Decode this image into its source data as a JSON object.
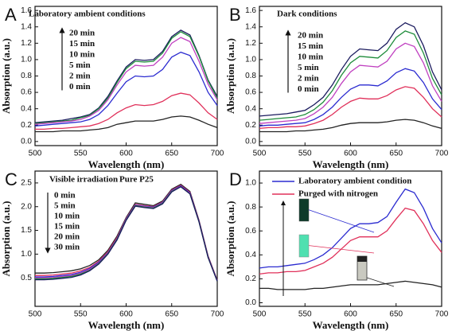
{
  "chart_data": [
    {
      "type": "line",
      "panel_label": "A",
      "annotations": [
        "Laboratory ambient conditions"
      ],
      "x_label": "Wavelength (nm)",
      "y_label": "Absorption (a.u.)",
      "xlim": [
        500,
        700
      ],
      "xticks": [
        500,
        550,
        600,
        650,
        700
      ],
      "ylim": [
        -0.05,
        1.65
      ],
      "yticks": [
        {
          "value": 0,
          "label": "0.0"
        },
        0.2,
        0.4,
        0.6,
        0.8,
        {
          "value": 1,
          "label": "1.0"
        },
        1.2,
        1.4,
        1.6
      ],
      "x": [
        500,
        510,
        520,
        530,
        540,
        550,
        560,
        570,
        580,
        590,
        600,
        610,
        620,
        630,
        640,
        650,
        660,
        670,
        680,
        690,
        700
      ],
      "series": [
        {
          "name": "20 min",
          "color": "#1a1a5e",
          "values": [
            0.23,
            0.24,
            0.25,
            0.26,
            0.28,
            0.3,
            0.33,
            0.41,
            0.55,
            0.74,
            0.91,
            1.0,
            0.99,
            1.0,
            1.1,
            1.28,
            1.36,
            1.3,
            1.05,
            0.75,
            0.55
          ]
        },
        {
          "name": "15 min",
          "color": "#1e8c3a",
          "values": [
            0.22,
            0.23,
            0.24,
            0.25,
            0.26,
            0.29,
            0.32,
            0.4,
            0.53,
            0.72,
            0.89,
            0.98,
            0.97,
            0.98,
            1.08,
            1.26,
            1.34,
            1.28,
            1.04,
            0.74,
            0.53
          ]
        },
        {
          "name": "10 min",
          "color": "#c040c0",
          "values": [
            0.21,
            0.22,
            0.23,
            0.24,
            0.25,
            0.27,
            0.31,
            0.38,
            0.51,
            0.69,
            0.85,
            0.93,
            0.92,
            0.93,
            1.03,
            1.2,
            1.27,
            1.22,
            0.98,
            0.7,
            0.51
          ]
        },
        {
          "name": "5 min",
          "color": "#2b2bd0",
          "values": [
            0.19,
            0.2,
            0.21,
            0.22,
            0.23,
            0.24,
            0.27,
            0.33,
            0.44,
            0.59,
            0.73,
            0.8,
            0.79,
            0.8,
            0.88,
            1.03,
            1.09,
            1.05,
            0.85,
            0.6,
            0.44
          ]
        },
        {
          "name": "2 min",
          "color": "#e0305a",
          "values": [
            0.15,
            0.15,
            0.16,
            0.16,
            0.17,
            0.18,
            0.19,
            0.22,
            0.27,
            0.35,
            0.41,
            0.45,
            0.44,
            0.45,
            0.49,
            0.56,
            0.59,
            0.57,
            0.47,
            0.35,
            0.27
          ]
        },
        {
          "name": "0 min",
          "color": "#222222",
          "values": [
            0.12,
            0.12,
            0.12,
            0.13,
            0.13,
            0.13,
            0.14,
            0.15,
            0.17,
            0.21,
            0.23,
            0.25,
            0.25,
            0.25,
            0.27,
            0.3,
            0.31,
            0.3,
            0.26,
            0.21,
            0.17
          ]
        }
      ]
    },
    {
      "type": "line",
      "panel_label": "B",
      "annotations": [
        "Dark conditions"
      ],
      "x_label": "Wavelength (nm)",
      "y_label": "Absorption (a.u.)",
      "xlim": [
        500,
        700
      ],
      "xticks": [
        500,
        550,
        600,
        650,
        700
      ],
      "ylim": [
        -0.05,
        1.65
      ],
      "yticks": [
        {
          "value": 0,
          "label": "0.0"
        },
        0.2,
        0.4,
        0.6,
        0.8,
        {
          "value": 1,
          "label": "1.0"
        },
        1.2,
        1.4,
        1.6
      ],
      "x": [
        500,
        510,
        520,
        530,
        540,
        550,
        560,
        570,
        580,
        590,
        600,
        610,
        620,
        630,
        640,
        650,
        660,
        670,
        680,
        690,
        700
      ],
      "series": [
        {
          "name": "20 min",
          "color": "#1a1a5e",
          "values": [
            0.31,
            0.32,
            0.33,
            0.34,
            0.36,
            0.38,
            0.45,
            0.54,
            0.69,
            0.88,
            1.04,
            1.13,
            1.12,
            1.11,
            1.2,
            1.37,
            1.45,
            1.4,
            1.17,
            0.85,
            0.63
          ]
        },
        {
          "name": "15 min",
          "color": "#1e8c3a",
          "values": [
            0.26,
            0.27,
            0.28,
            0.29,
            0.3,
            0.33,
            0.39,
            0.48,
            0.62,
            0.81,
            0.96,
            1.04,
            1.03,
            1.02,
            1.11,
            1.27,
            1.35,
            1.31,
            1.08,
            0.77,
            0.57
          ]
        },
        {
          "name": "10 min",
          "color": "#c040c0",
          "values": [
            0.22,
            0.23,
            0.24,
            0.25,
            0.26,
            0.28,
            0.34,
            0.42,
            0.54,
            0.71,
            0.85,
            0.93,
            0.92,
            0.91,
            0.98,
            1.13,
            1.2,
            1.16,
            0.96,
            0.68,
            0.49
          ]
        },
        {
          "name": "5 min",
          "color": "#2b2bd0",
          "values": [
            0.19,
            0.2,
            0.2,
            0.21,
            0.22,
            0.23,
            0.27,
            0.33,
            0.42,
            0.54,
            0.64,
            0.69,
            0.69,
            0.68,
            0.74,
            0.84,
            0.89,
            0.86,
            0.72,
            0.52,
            0.39
          ]
        },
        {
          "name": "2 min",
          "color": "#e0305a",
          "values": [
            0.16,
            0.17,
            0.17,
            0.18,
            0.18,
            0.19,
            0.22,
            0.26,
            0.33,
            0.42,
            0.49,
            0.53,
            0.52,
            0.52,
            0.56,
            0.63,
            0.67,
            0.65,
            0.54,
            0.4,
            0.3
          ]
        },
        {
          "name": "0 min",
          "color": "#222222",
          "values": [
            0.12,
            0.12,
            0.12,
            0.12,
            0.13,
            0.13,
            0.14,
            0.15,
            0.17,
            0.2,
            0.22,
            0.23,
            0.23,
            0.23,
            0.24,
            0.26,
            0.27,
            0.26,
            0.23,
            0.19,
            0.16
          ]
        }
      ]
    },
    {
      "type": "line",
      "panel_label": "C",
      "annotations": [
        "Visible irradiation",
        "Pure P25"
      ],
      "x_label": "Wavelength (nm)",
      "y_label": "Absorption (a.u.)",
      "xlim": [
        500,
        700
      ],
      "xticks": [
        500,
        550,
        600,
        650,
        700
      ],
      "ylim": [
        -0.1,
        2.75
      ],
      "yticks": [
        0.5,
        {
          "value": 1,
          "label": "1.0"
        },
        1.5,
        {
          "value": 2,
          "label": "2.0"
        },
        2.5
      ],
      "x": [
        500,
        510,
        520,
        530,
        540,
        550,
        560,
        570,
        580,
        590,
        600,
        610,
        620,
        630,
        640,
        650,
        660,
        670,
        680,
        690,
        700
      ],
      "series": [
        {
          "name": "0 min",
          "color": "#222222",
          "values": [
            0.6,
            0.6,
            0.61,
            0.63,
            0.65,
            0.69,
            0.76,
            0.88,
            1.08,
            1.38,
            1.77,
            2.08,
            2.05,
            2.02,
            2.12,
            2.37,
            2.47,
            2.32,
            1.71,
            0.96,
            0.45
          ]
        },
        {
          "name": "5 min",
          "color": "#e0305a",
          "values": [
            0.55,
            0.55,
            0.56,
            0.58,
            0.6,
            0.65,
            0.72,
            0.85,
            1.05,
            1.35,
            1.75,
            2.05,
            2.02,
            2.0,
            2.1,
            2.35,
            2.45,
            2.3,
            1.7,
            0.95,
            0.45
          ]
        },
        {
          "name": "10 min",
          "color": "#2b2bd0",
          "values": [
            0.52,
            0.52,
            0.53,
            0.55,
            0.57,
            0.62,
            0.7,
            0.83,
            1.03,
            1.33,
            1.74,
            2.04,
            2.01,
            1.99,
            2.09,
            2.34,
            2.44,
            2.29,
            1.69,
            0.94,
            0.44
          ]
        },
        {
          "name": "15 min",
          "color": "#c040c0",
          "values": [
            0.5,
            0.5,
            0.51,
            0.53,
            0.55,
            0.6,
            0.68,
            0.81,
            1.02,
            1.32,
            1.73,
            2.03,
            2.0,
            1.98,
            2.08,
            2.33,
            2.43,
            2.28,
            1.69,
            0.94,
            0.44
          ]
        },
        {
          "name": "20 min",
          "color": "#1e8c3a",
          "values": [
            0.48,
            0.48,
            0.49,
            0.51,
            0.53,
            0.58,
            0.66,
            0.8,
            1.01,
            1.31,
            1.72,
            2.02,
            1.99,
            1.97,
            2.07,
            2.32,
            2.42,
            2.27,
            1.68,
            0.93,
            0.43
          ]
        },
        {
          "name": "30 min",
          "color": "#1a1a5e",
          "values": [
            0.46,
            0.46,
            0.47,
            0.49,
            0.51,
            0.56,
            0.65,
            0.79,
            1.0,
            1.3,
            1.71,
            2.01,
            1.98,
            1.96,
            2.06,
            2.31,
            2.42,
            2.27,
            1.68,
            0.93,
            0.43
          ]
        }
      ]
    },
    {
      "type": "line",
      "panel_label": "D",
      "legend": "upper left",
      "x_label": "Wavelength (nm)",
      "y_label": "Absorption (a.u.)",
      "xlim": [
        500,
        700
      ],
      "xticks": [
        500,
        550,
        600,
        650,
        700
      ],
      "ylim": [
        -0.03,
        1.1
      ],
      "yticks": [
        {
          "value": 0,
          "label": "0.0"
        },
        0.2,
        0.4,
        0.6,
        0.8,
        {
          "value": 1,
          "label": "1.0"
        }
      ],
      "x": [
        500,
        510,
        520,
        530,
        540,
        550,
        560,
        570,
        580,
        590,
        600,
        610,
        620,
        630,
        640,
        650,
        660,
        670,
        680,
        690,
        700
      ],
      "series": [
        {
          "name": "Laboratory ambient condition",
          "color": "#2b2bd0",
          "values": [
            0.29,
            0.3,
            0.3,
            0.31,
            0.32,
            0.33,
            0.36,
            0.4,
            0.46,
            0.54,
            0.62,
            0.66,
            0.66,
            0.67,
            0.72,
            0.84,
            0.95,
            0.92,
            0.79,
            0.62,
            0.5
          ]
        },
        {
          "name": "Purged with nitrogen",
          "color": "#e0305a",
          "values": [
            0.24,
            0.25,
            0.25,
            0.26,
            0.26,
            0.27,
            0.3,
            0.33,
            0.38,
            0.45,
            0.52,
            0.55,
            0.55,
            0.55,
            0.6,
            0.7,
            0.79,
            0.77,
            0.66,
            0.52,
            0.42
          ]
        },
        {
          "color": "#222222",
          "values": [
            0.12,
            0.12,
            0.11,
            0.11,
            0.11,
            0.11,
            0.12,
            0.12,
            0.13,
            0.14,
            0.15,
            0.15,
            0.15,
            0.15,
            0.16,
            0.17,
            0.18,
            0.17,
            0.16,
            0.15,
            0.13
          ]
        }
      ]
    }
  ]
}
